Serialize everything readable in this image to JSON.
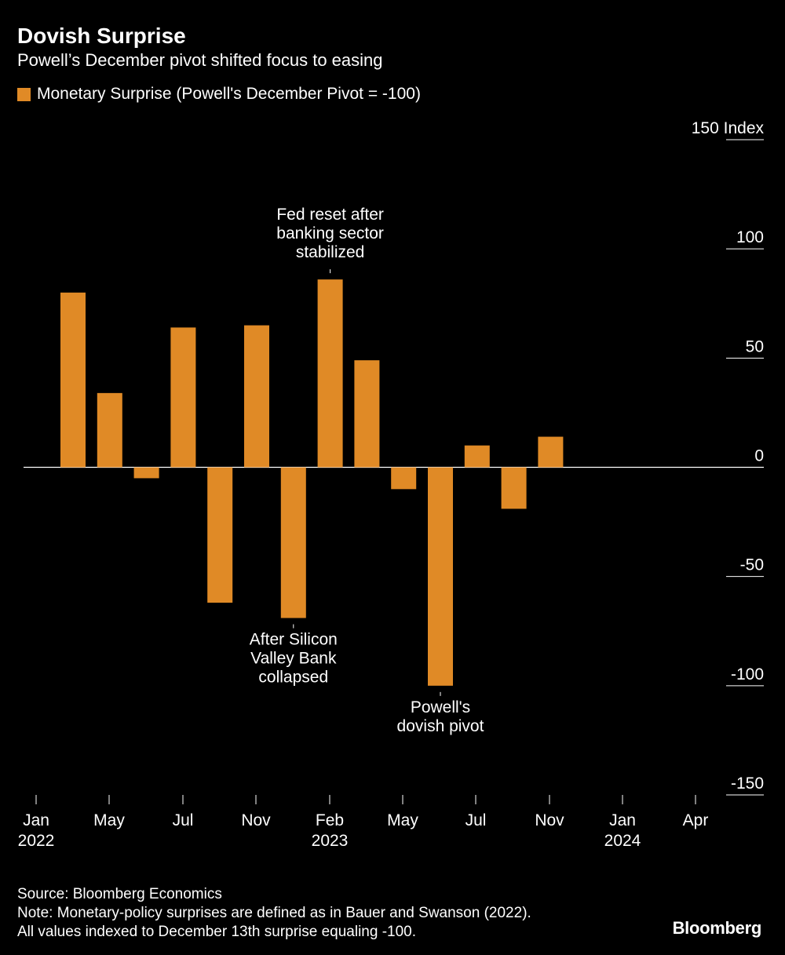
{
  "chart_data": {
    "type": "bar",
    "title": "Dovish Surprise",
    "subtitle": "Powell’s December pivot shifted focus to easing",
    "legend": [
      {
        "label": "Monetary Surprise (Powell's December Pivot = -100)",
        "color": "#E08A26"
      }
    ],
    "ylim": [
      -150,
      150
    ],
    "yunit": "Index",
    "yticks": [
      {
        "value": 150,
        "label": "150"
      },
      {
        "value": 100,
        "label": "100"
      },
      {
        "value": 50,
        "label": "50"
      },
      {
        "value": 0,
        "label": "0"
      },
      {
        "value": -50,
        "label": "-50"
      },
      {
        "value": -100,
        "label": "-100"
      },
      {
        "value": -150,
        "label": "-150"
      }
    ],
    "xtick_labels": [
      {
        "label": "Jan",
        "sublabel": "2022"
      },
      {
        "label": "May",
        "sublabel": ""
      },
      {
        "label": "Jul",
        "sublabel": ""
      },
      {
        "label": "Nov",
        "sublabel": ""
      },
      {
        "label": "Feb",
        "sublabel": "2023"
      },
      {
        "label": "May",
        "sublabel": ""
      },
      {
        "label": "Jul",
        "sublabel": ""
      },
      {
        "label": "Nov",
        "sublabel": ""
      },
      {
        "label": "Jan",
        "sublabel": "2024"
      },
      {
        "label": "Apr",
        "sublabel": ""
      }
    ],
    "series": [
      {
        "color": "#E08A26",
        "values": [
          80,
          34,
          -5,
          64,
          -62,
          65,
          -69,
          86,
          49,
          -10,
          -100,
          10,
          -19,
          14
        ]
      }
    ],
    "annotations": [
      {
        "bar_index": 6,
        "lines": [
          "After Silicon",
          "Valley Bank",
          "collapsed"
        ],
        "position": "below"
      },
      {
        "bar_index": 7,
        "lines": [
          "Fed reset after",
          "banking sector",
          "stabilized"
        ],
        "position": "above"
      },
      {
        "bar_index": 10,
        "lines": [
          "Powell's",
          "dovish pivot"
        ],
        "position": "below"
      }
    ],
    "grid": false,
    "legend_position": "top-left"
  },
  "footer": {
    "source": "Source: Bloomberg Economics",
    "note_line1": "Note: Monetary-policy surprises are defined as in Bauer and Swanson (2022).",
    "note_line2": "All values indexed to December 13th surprise equaling -100."
  },
  "brand": "Bloomberg"
}
